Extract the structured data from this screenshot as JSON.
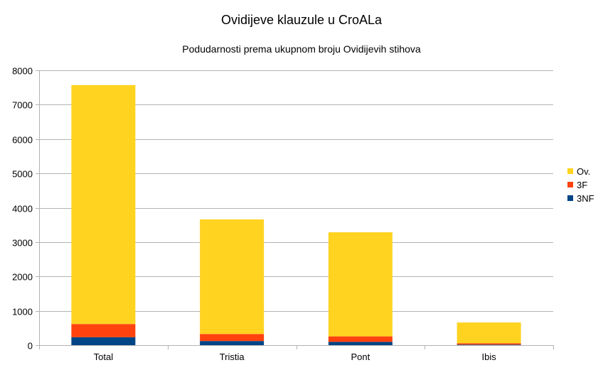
{
  "chart_data": {
    "type": "bar",
    "stacked": true,
    "title": "Ovidijeve klauzule u CroALa",
    "subtitle": "Podudarnosti prema ukupnom broju Ovidijevih stihova",
    "categories": [
      "Total",
      "Tristia",
      "Pont",
      "Ibis"
    ],
    "series": [
      {
        "name": "3NF",
        "color": "#004586",
        "values": [
          230,
          120,
          95,
          15
        ]
      },
      {
        "name": "3F",
        "color": "#ff420e",
        "values": [
          385,
          205,
          160,
          40
        ]
      },
      {
        "name": "Ov.",
        "color": "#ffd320",
        "values": [
          6955,
          3335,
          3030,
          605
        ]
      }
    ],
    "ylim": [
      0,
      8000
    ],
    "yticks": [
      0,
      1000,
      2000,
      3000,
      4000,
      5000,
      6000,
      7000,
      8000
    ],
    "grid": true,
    "legend": {
      "position": "right",
      "order": [
        "Ov.",
        "3F",
        "3NF"
      ]
    }
  }
}
